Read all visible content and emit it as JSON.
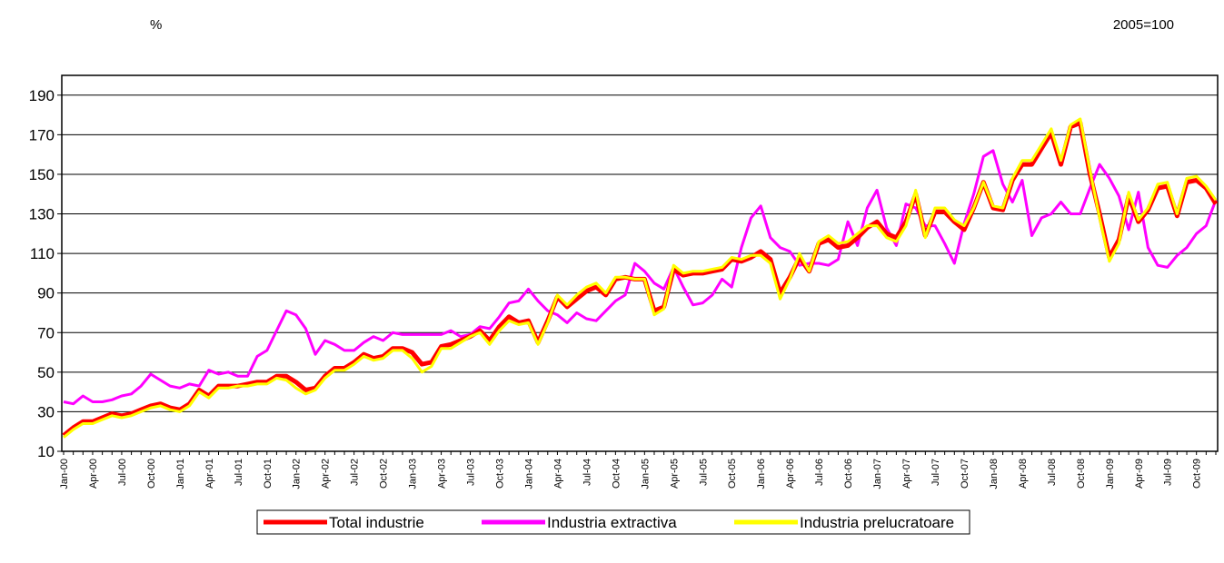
{
  "chart_data": {
    "type": "line",
    "y_unit": "%",
    "note": "2005=100",
    "categories": [
      "Jan-00",
      null,
      null,
      "Apr-00",
      null,
      null,
      "Jul-00",
      null,
      null,
      "Oct-00",
      null,
      null,
      "Jan-01",
      null,
      null,
      "Apr-01",
      null,
      null,
      "Jul-01",
      null,
      null,
      "Oct-01",
      null,
      null,
      "Jan-02",
      null,
      null,
      "Apr-02",
      null,
      null,
      "Jul-02",
      null,
      null,
      "Oct-02",
      null,
      null,
      "Jan-03",
      null,
      null,
      "Apr-03",
      null,
      null,
      "Jul-03",
      null,
      null,
      "Oct-03",
      null,
      null,
      "Jan-04",
      null,
      null,
      "Apr-04",
      null,
      null,
      "Jul-04",
      null,
      null,
      "Oct-04",
      null,
      null,
      "Jan-05",
      null,
      null,
      "Apr-05",
      null,
      null,
      "Jul-05",
      null,
      null,
      "Oct-05",
      null,
      null,
      "Jan-06",
      null,
      null,
      "Apr-06",
      null,
      null,
      "Jul-06",
      null,
      null,
      "Oct-06",
      null,
      null,
      "Jan-07",
      null,
      null,
      "Apr-07",
      null,
      null,
      "Jul-07",
      null,
      null,
      "Oct-07",
      null,
      null,
      "Jan-08",
      null,
      null,
      "Apr-08",
      null,
      null,
      "Jul-08",
      null,
      null,
      "Oct-08",
      null,
      null,
      "Jan-09",
      null,
      null,
      "Apr-09",
      null,
      null,
      "Jul-09",
      null,
      null,
      "Oct-09",
      null,
      null
    ],
    "series": [
      {
        "name": "Industria extractiva",
        "color": "#ff00ff",
        "values": [
          35,
          34,
          38,
          35,
          35,
          36,
          38,
          39,
          43,
          49,
          46,
          43,
          42,
          44,
          43,
          51,
          49,
          50,
          48,
          48,
          58,
          61,
          71,
          81,
          79,
          72,
          59,
          66,
          64,
          61,
          61,
          65,
          68,
          66,
          70,
          69,
          69,
          69,
          69,
          69,
          71,
          68,
          69,
          73,
          72,
          78,
          85,
          86,
          92,
          86,
          81,
          79,
          75,
          80,
          77,
          76,
          81,
          86,
          89,
          105,
          101,
          95,
          92,
          103,
          93,
          84,
          85,
          89,
          97,
          93,
          113,
          128,
          134,
          118,
          113,
          111,
          104,
          105,
          105,
          104,
          107,
          126,
          114,
          133,
          142,
          123,
          114,
          135,
          133,
          124,
          124,
          115,
          105,
          125,
          140,
          159,
          162,
          145,
          136,
          147,
          119,
          128,
          130,
          136,
          130,
          130,
          143,
          155,
          148,
          139,
          122,
          141,
          113,
          104,
          103,
          109,
          113,
          120,
          124,
          137
        ]
      },
      {
        "name": "Total industrie",
        "color": "#ff0000",
        "values": [
          18,
          22,
          25,
          25,
          27,
          29,
          28,
          29,
          31,
          33,
          34,
          32,
          31,
          34,
          41,
          38,
          43,
          43,
          43,
          44,
          45,
          45,
          48,
          48,
          45,
          41,
          42,
          48,
          52,
          52,
          55,
          59,
          57,
          58,
          62,
          62,
          60,
          54,
          55,
          63,
          64,
          66,
          68,
          71,
          66,
          73,
          78,
          75,
          76,
          65,
          76,
          88,
          83,
          87,
          91,
          93,
          89,
          97,
          98,
          97,
          97,
          81,
          83,
          102,
          99,
          100,
          100,
          101,
          102,
          107,
          106,
          108,
          111,
          107,
          90,
          98,
          108,
          101,
          115,
          117,
          113,
          114,
          118,
          123,
          126,
          120,
          118,
          126,
          140,
          119,
          131,
          131,
          126,
          122,
          133,
          146,
          133,
          132,
          147,
          155,
          155,
          163,
          171,
          155,
          174,
          176,
          150,
          130,
          108,
          117,
          139,
          126,
          132,
          143,
          144,
          129,
          146,
          147,
          143,
          135
        ]
      },
      {
        "name": "Industria prelucratoare",
        "color": "#ffff00",
        "values": [
          17,
          21,
          24,
          24,
          26,
          28,
          27,
          28,
          30,
          32,
          33,
          31,
          30,
          33,
          40,
          37,
          42,
          42,
          43,
          43,
          44,
          44,
          47,
          46,
          42,
          39,
          41,
          47,
          51,
          51,
          54,
          58,
          56,
          57,
          61,
          61,
          57,
          50,
          53,
          62,
          62,
          65,
          68,
          70,
          64,
          71,
          76,
          74,
          75,
          64,
          75,
          89,
          84,
          89,
          93,
          95,
          90,
          98,
          98,
          97,
          97,
          79,
          82,
          104,
          100,
          101,
          101,
          102,
          103,
          108,
          107,
          109,
          109,
          105,
          87,
          97,
          110,
          101,
          116,
          119,
          115,
          116,
          120,
          124,
          124,
          118,
          116,
          124,
          142,
          118,
          133,
          133,
          127,
          124,
          133,
          146,
          134,
          133,
          148,
          157,
          157,
          165,
          173,
          157,
          175,
          178,
          152,
          128,
          106,
          115,
          141,
          127,
          133,
          145,
          146,
          130,
          148,
          149,
          144,
          137
        ]
      }
    ],
    "ylim": [
      10,
      200
    ],
    "yticks": [
      10,
      30,
      50,
      70,
      90,
      110,
      130,
      150,
      170,
      190
    ],
    "grid": true
  }
}
